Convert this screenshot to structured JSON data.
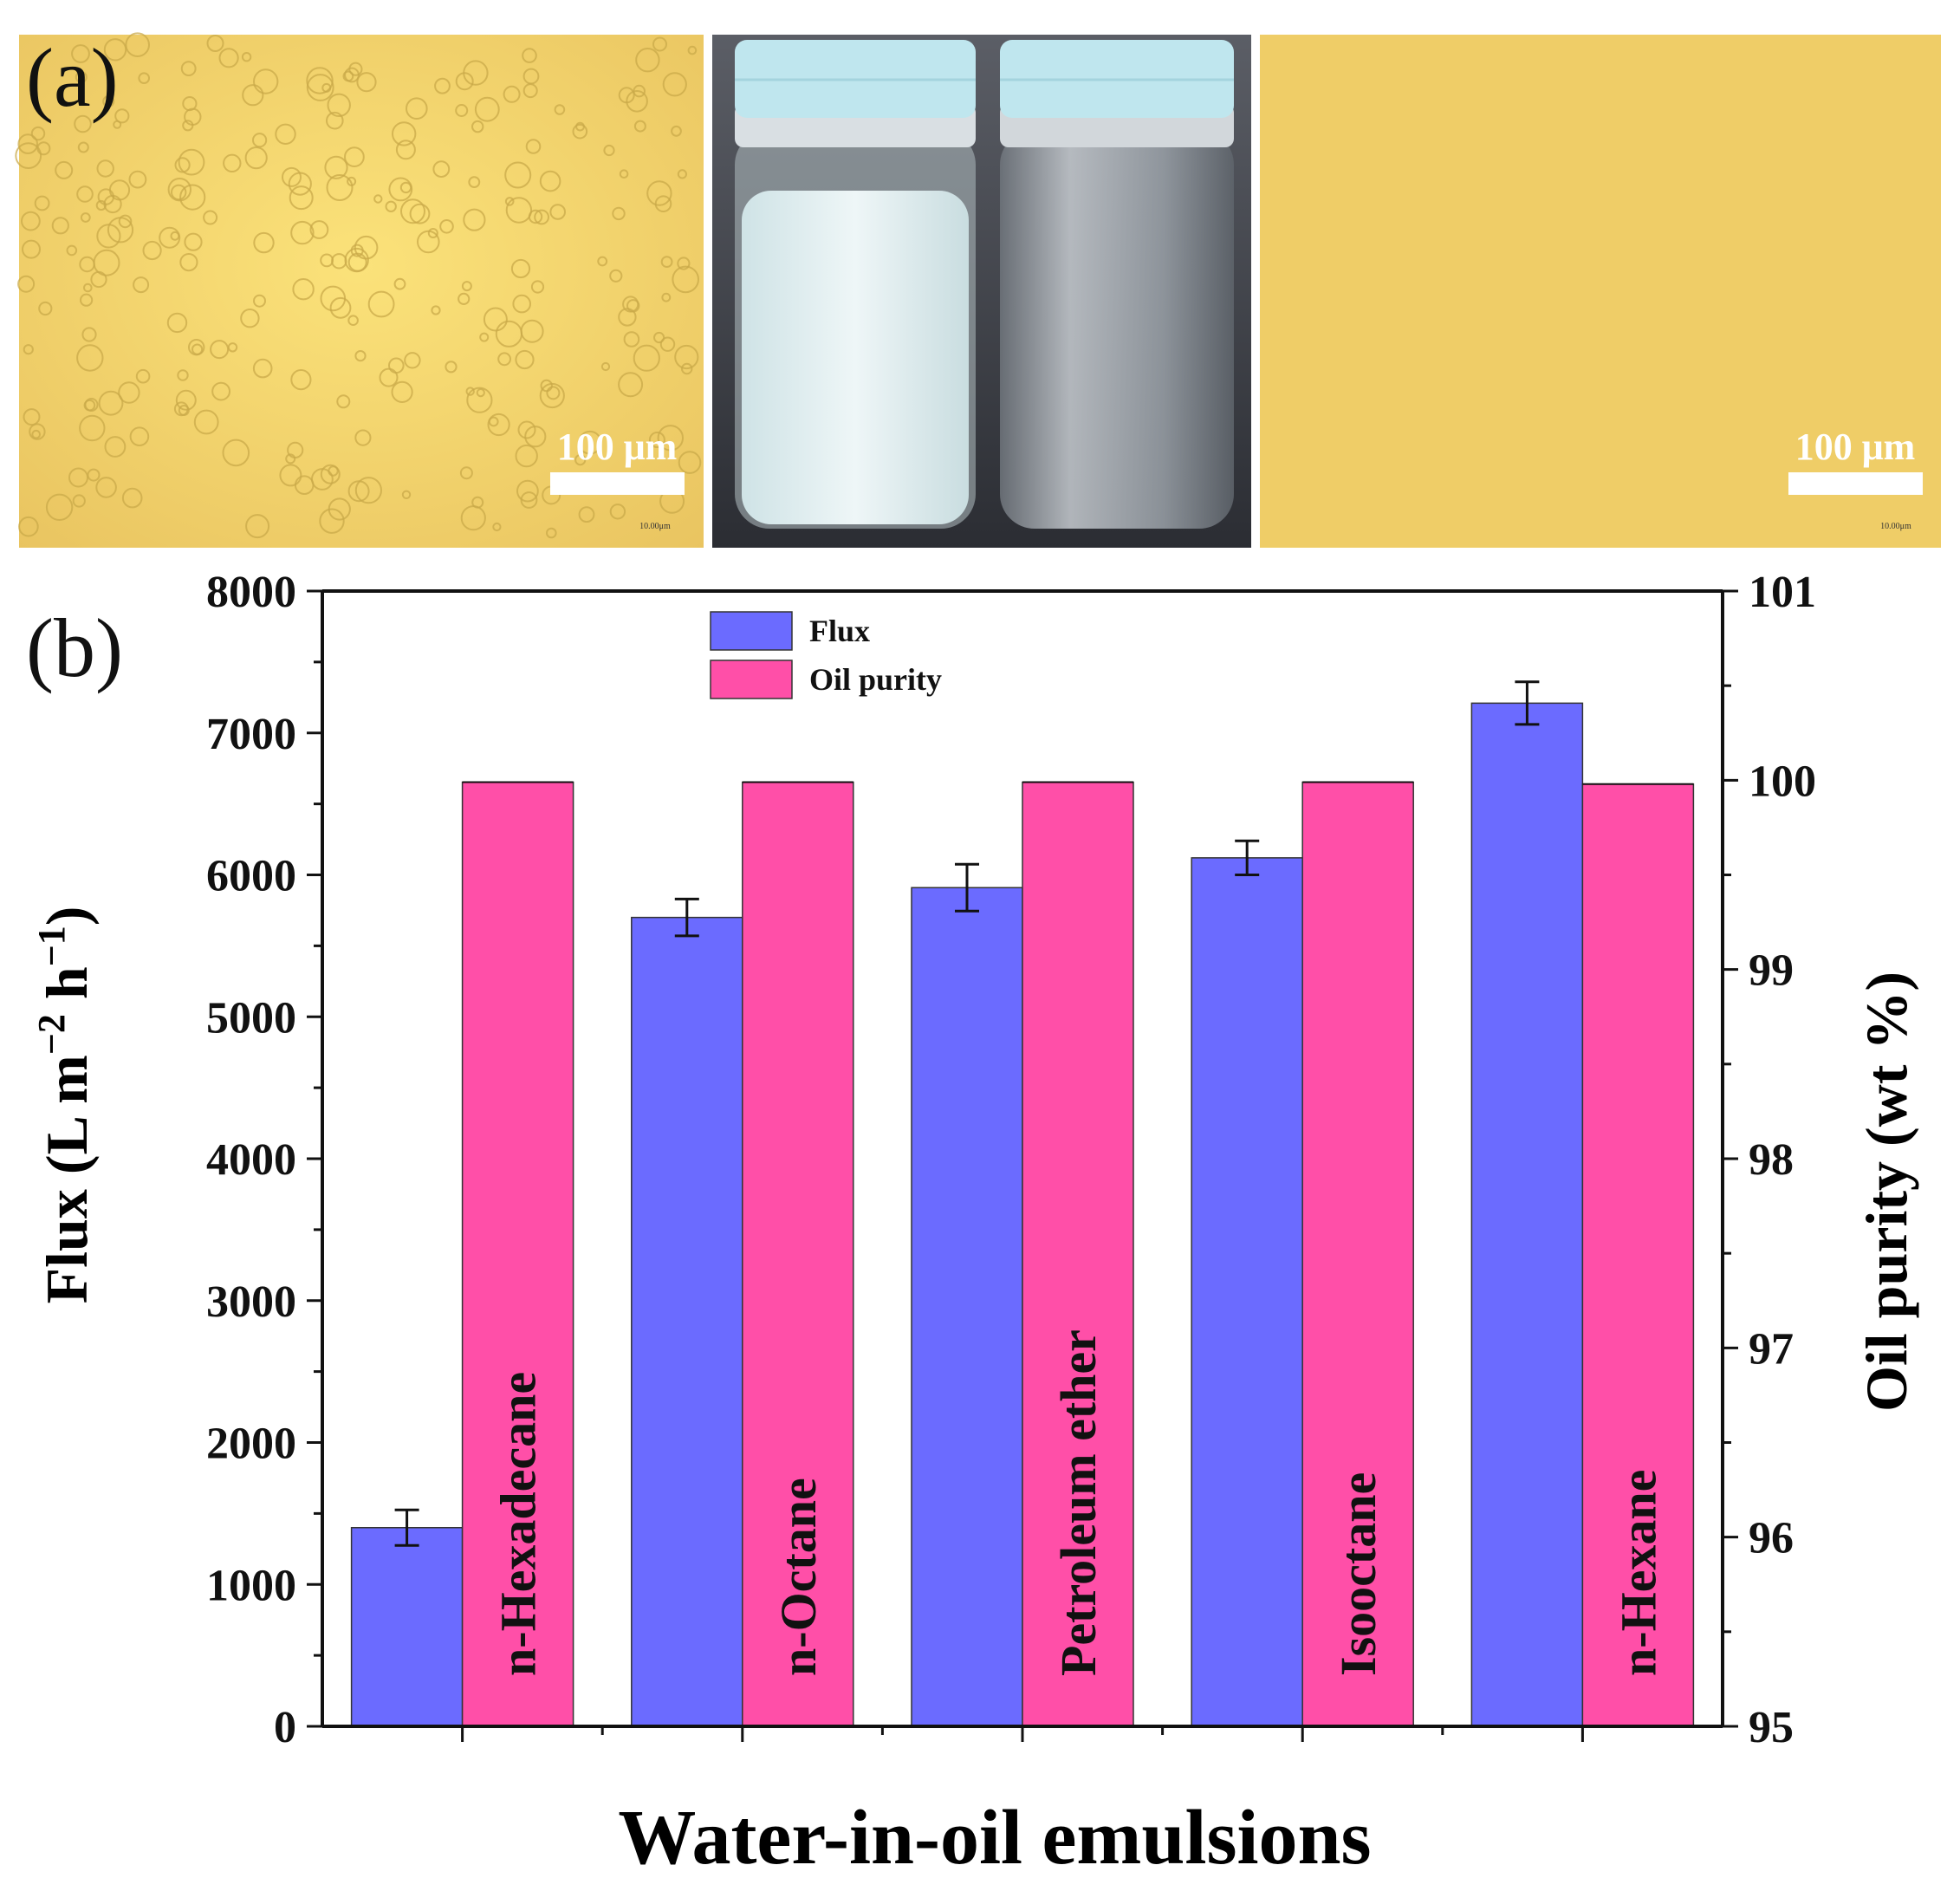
{
  "figure": {
    "panel_a_label": "(a)",
    "panel_b_label": "(b)",
    "panel_a": {
      "left_image": {
        "scale_bar_text": "100 μm",
        "micro_scale_text": "10.00μm",
        "description_icon": "microscope-droplets"
      },
      "center_image": {
        "description_icon": "two-vials-photo"
      },
      "right_image": {
        "scale_bar_text": "100 μm",
        "micro_scale_text": "10.00μm",
        "description_icon": "microscope-clear"
      }
    }
  },
  "colors": {
    "flux": "#6b6bff",
    "purity": "#ff4fa8",
    "micro_bg": "#f2d36b",
    "photo_bg": "#3a3d44",
    "cap": "#bfe6ee"
  },
  "chart_data": {
    "type": "bar",
    "title": "",
    "xlabel": "Water-in-oil emulsions",
    "ylabel_left_parts": [
      "Flux (L m",
      "−2",
      " h",
      "−1",
      ")"
    ],
    "ylabel_right": "Oil purity (wt %)",
    "categories": [
      "n-Hexadecane",
      "n-Octane",
      "Petroleum ether",
      "Isooctane",
      "n-Hexane"
    ],
    "series": [
      {
        "name": "Flux",
        "axis": "left",
        "values": [
          1400,
          5700,
          5910,
          6120,
          7210
        ],
        "errors": [
          125,
          130,
          165,
          120,
          150
        ]
      },
      {
        "name": "Oil purity",
        "axis": "right",
        "values": [
          99.99,
          99.99,
          99.99,
          99.99,
          99.98
        ],
        "errors": [
          0,
          0,
          0,
          0,
          0
        ]
      }
    ],
    "ylim_left": [
      0,
      8000
    ],
    "ylim_right": [
      95,
      101
    ],
    "yticks_left": [
      "0",
      "1000",
      "2000",
      "3000",
      "4000",
      "5000",
      "6000",
      "7000",
      "8000"
    ],
    "yticks_right": [
      "95",
      "96",
      "97",
      "98",
      "99",
      "100",
      "101"
    ],
    "legend_position": "top-center",
    "grid": false
  }
}
